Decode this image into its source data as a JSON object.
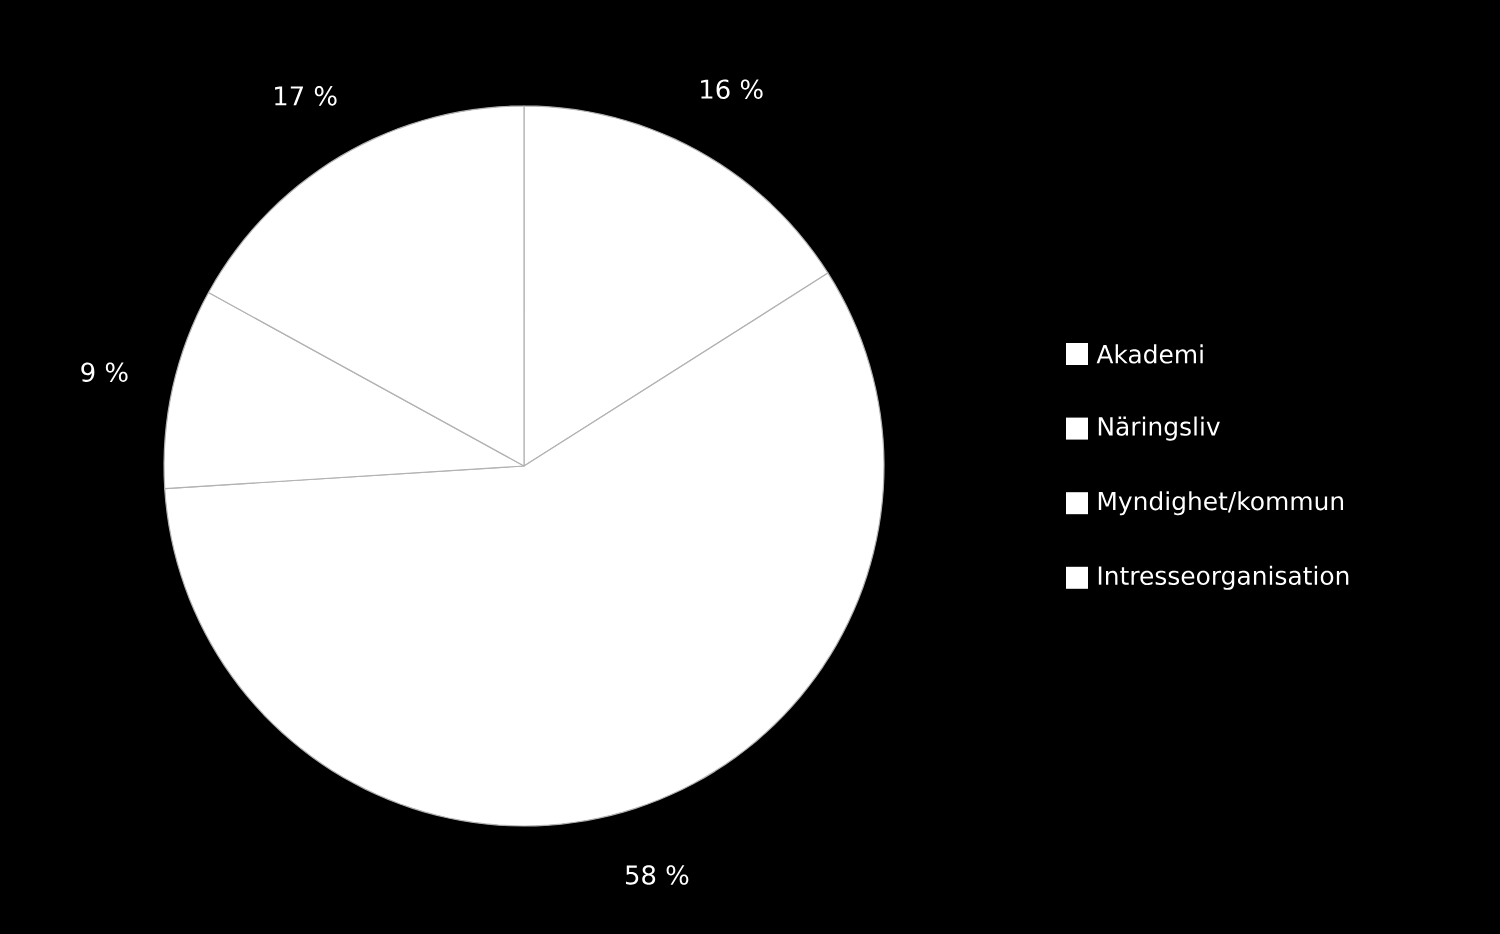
{
  "chart_data": {
    "type": "pie",
    "categories": [
      "Akademi",
      "Näringsliv",
      "Myndighet/kommun",
      "Intresseorganisation"
    ],
    "values": [
      16,
      58,
      9,
      17
    ],
    "colors": [
      "#ffffff",
      "#ffffff",
      "#ffffff",
      "#ffffff"
    ],
    "value_labels": [
      "16 %",
      "58 %",
      "9 %",
      "17 %"
    ],
    "legend": "right"
  }
}
